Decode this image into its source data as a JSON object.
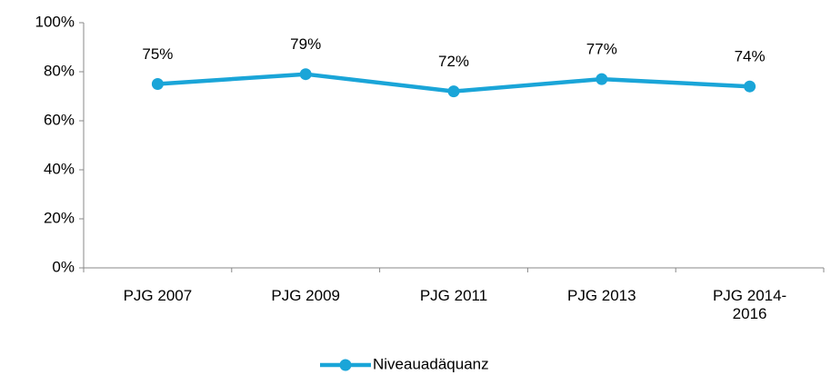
{
  "chart_data": {
    "type": "line",
    "categories": [
      "PJG 2007",
      "PJG 2009",
      "PJG 2011",
      "PJG 2013",
      "PJG 2014-2016"
    ],
    "series": [
      {
        "name": "Niveauadäquanz",
        "color": "#1aa5d8",
        "values": [
          75,
          79,
          72,
          77,
          74
        ],
        "value_labels": [
          "75%",
          "79%",
          "72%",
          "77%",
          "74%"
        ]
      }
    ],
    "ylim": [
      0,
      100
    ],
    "yticks": [
      {
        "value": 0,
        "label": "0%"
      },
      {
        "value": 20,
        "label": "20%"
      },
      {
        "value": 40,
        "label": "40%"
      },
      {
        "value": 60,
        "label": "60%"
      },
      {
        "value": 80,
        "label": "80%"
      },
      {
        "value": 100,
        "label": "100%"
      }
    ],
    "grid": false,
    "legend": "bottom"
  }
}
